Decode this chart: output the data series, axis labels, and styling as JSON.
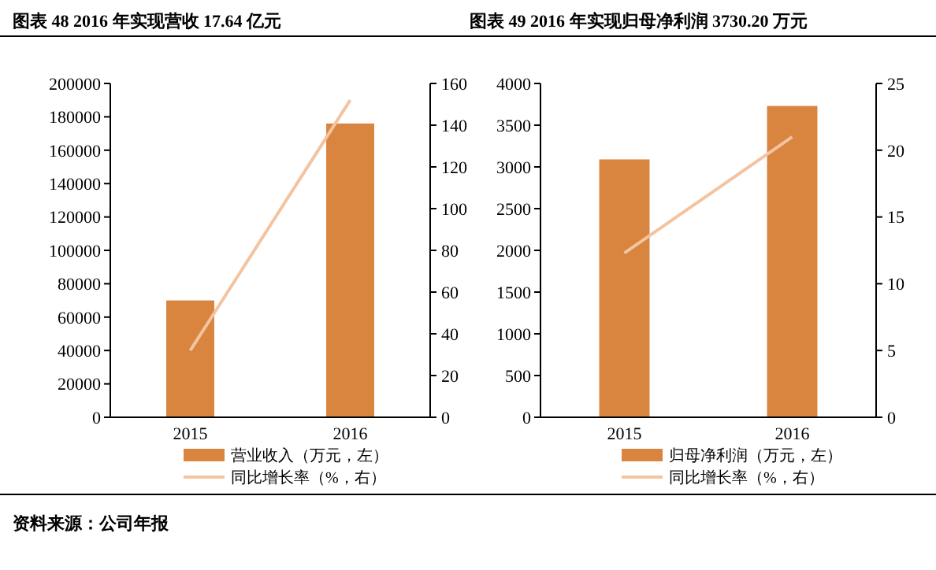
{
  "chart_data": [
    {
      "type": "bar",
      "title": "图表 48 2016 年实现营收 17.64 亿元",
      "categories": [
        "2015",
        "2016"
      ],
      "series": [
        {
          "name": "营业收入（万元，左）",
          "color": "#d9843f",
          "values": [
            70000,
            176000
          ]
        },
        {
          "name": "同比增长率（%，右）",
          "type": "line",
          "axis": "y2",
          "color": "#f4c3a0",
          "values": [
            32,
            152
          ]
        }
      ],
      "ylim": [
        0,
        200000
      ],
      "yticks": [
        0,
        20000,
        40000,
        60000,
        80000,
        100000,
        120000,
        140000,
        160000,
        180000,
        200000
      ],
      "y2lim": [
        0,
        160
      ],
      "y2ticks": [
        0,
        20,
        40,
        60,
        80,
        100,
        120,
        140,
        160
      ],
      "legend": "bottom",
      "grid": false,
      "annotations": [
        "资料来源：公司年报"
      ]
    },
    {
      "type": "bar",
      "title": "图表 49 2016 年实现归母净利润 3730.20 万元",
      "categories": [
        "2015",
        "2016"
      ],
      "series": [
        {
          "name": "归母净利润（万元，左）",
          "color": "#d9843f",
          "values": [
            3090,
            3730
          ]
        },
        {
          "name": "同比增长率（%，右）",
          "type": "line",
          "axis": "y2",
          "color": "#f4c3a0",
          "values": [
            12.3,
            21
          ]
        }
      ],
      "ylim": [
        0,
        4000
      ],
      "yticks": [
        0,
        500,
        1000,
        1500,
        2000,
        2500,
        3000,
        3500,
        4000
      ],
      "y2lim": [
        0,
        25
      ],
      "y2ticks": [
        0,
        5,
        10,
        15,
        20,
        25
      ],
      "legend": "bottom",
      "grid": false
    }
  ]
}
